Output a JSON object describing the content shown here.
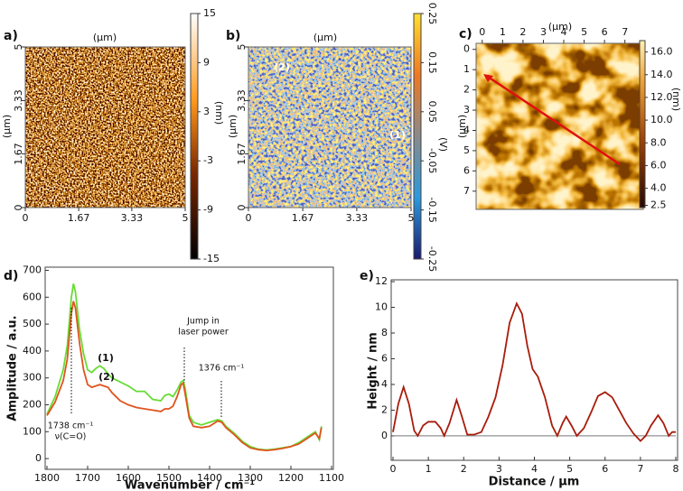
{
  "chart_data": [
    {
      "type": "image",
      "label": "a)",
      "title": "(μm)",
      "ylabel": "(μm)",
      "xlim": [
        0,
        5
      ],
      "xticks": [
        0,
        1.67,
        3.33,
        5
      ],
      "ylim": [
        0,
        5
      ],
      "yticks": [
        0,
        1.67,
        3.33,
        5
      ],
      "colorbar": {
        "lim": [
          -15,
          15
        ],
        "ticks": [
          -15,
          -9,
          -3,
          3,
          9,
          15
        ],
        "label": "(nm)"
      }
    },
    {
      "type": "image",
      "label": "b)",
      "title": "(μm)",
      "ylabel": "(μm)",
      "xlim": [
        0,
        5
      ],
      "xticks": [
        0,
        1.67,
        3.33,
        5
      ],
      "ylim": [
        0,
        5
      ],
      "yticks": [
        0,
        1.67,
        3.33,
        5
      ],
      "annotations": [
        "(2)",
        "(1)"
      ],
      "colorbar": {
        "lim": [
          -0.25,
          0.25
        ],
        "ticks": [
          -0.25,
          -0.15,
          -0.05,
          0.05,
          0.15,
          0.25
        ],
        "label": "(V)"
      }
    },
    {
      "type": "image",
      "label": "c)",
      "title": "(μm)",
      "ylabel": "(μm)",
      "xlim": [
        -0.3,
        7.9
      ],
      "xticks": [
        0,
        1,
        2,
        3,
        4,
        5,
        6,
        7
      ],
      "ylim": [
        7.9,
        -0.3
      ],
      "yticks": [
        0,
        1,
        2,
        3,
        4,
        5,
        6,
        7
      ],
      "colorbar": {
        "lim": [
          2.3,
          17
        ],
        "ticks": [
          2.5,
          {
            "value": 4,
            "label": "4.0"
          },
          {
            "value": 6,
            "label": "6.0"
          },
          {
            "value": 8,
            "label": "8.0"
          },
          {
            "value": 10,
            "label": "10.0"
          },
          {
            "value": 12,
            "label": "12.0"
          },
          {
            "value": 14,
            "label": "14.0"
          },
          {
            "value": 16,
            "label": "16.0"
          }
        ],
        "label": "(nm)"
      }
    },
    {
      "type": "line",
      "label": "d)",
      "xlabel": "Wavenumber / cm⁻¹",
      "ylabel": "Amplitude / a.u.",
      "xlim": [
        1800,
        1100
      ],
      "xticks": [
        1800,
        1700,
        1600,
        1500,
        1400,
        1300,
        1200,
        1100
      ],
      "ylim": [
        -40,
        705
      ],
      "yticks": [
        0,
        100,
        200,
        300,
        400,
        500,
        600,
        700
      ],
      "annotations": [
        "Jump in",
        "laser power",
        "1376 cm⁻¹",
        "1738 cm⁻¹",
        "ν(C=O)"
      ],
      "x": [
        1800,
        1780,
        1760,
        1750,
        1740,
        1735,
        1730,
        1720,
        1710,
        1700,
        1690,
        1680,
        1670,
        1660,
        1650,
        1640,
        1620,
        1600,
        1580,
        1560,
        1540,
        1520,
        1510,
        1500,
        1490,
        1480,
        1470,
        1465,
        1460,
        1450,
        1440,
        1420,
        1400,
        1380,
        1370,
        1360,
        1340,
        1320,
        1300,
        1280,
        1260,
        1240,
        1220,
        1200,
        1180,
        1160,
        1140,
        1130,
        1125
      ],
      "series": [
        {
          "name": "(1)",
          "color": "#66dd33",
          "values": [
            165,
            230,
            330,
            420,
            600,
            650,
            620,
            480,
            390,
            330,
            320,
            335,
            345,
            335,
            315,
            300,
            285,
            270,
            250,
            250,
            220,
            215,
            235,
            240,
            230,
            255,
            285,
            290,
            260,
            160,
            135,
            125,
            135,
            145,
            140,
            120,
            95,
            65,
            45,
            35,
            32,
            35,
            40,
            45,
            60,
            80,
            100,
            70,
            120
          ]
        },
        {
          "name": "(2)",
          "color": "#e0541e",
          "values": [
            160,
            210,
            290,
            370,
            540,
            585,
            560,
            430,
            330,
            275,
            265,
            270,
            275,
            270,
            265,
            245,
            215,
            200,
            190,
            185,
            180,
            175,
            185,
            185,
            195,
            230,
            275,
            280,
            240,
            150,
            120,
            115,
            120,
            140,
            135,
            115,
            90,
            60,
            40,
            33,
            30,
            33,
            38,
            45,
            55,
            75,
            95,
            75,
            115
          ]
        }
      ]
    },
    {
      "type": "line",
      "label": "e)",
      "xlabel": "Distance / μm",
      "ylabel": "Height / nm",
      "xlim": [
        0,
        8
      ],
      "xticks": [
        0,
        1,
        2,
        3,
        4,
        5,
        6,
        7,
        8
      ],
      "ylim": [
        -1.9,
        12
      ],
      "yticks": [
        0,
        2,
        4,
        6,
        8,
        10,
        12
      ],
      "x": [
        0,
        0.15,
        0.3,
        0.45,
        0.6,
        0.7,
        0.85,
        1.0,
        1.2,
        1.35,
        1.45,
        1.6,
        1.8,
        1.95,
        2.1,
        2.3,
        2.5,
        2.7,
        2.9,
        3.1,
        3.3,
        3.5,
        3.65,
        3.8,
        3.95,
        4.1,
        4.3,
        4.5,
        4.65,
        4.8,
        4.9,
        5.05,
        5.2,
        5.4,
        5.6,
        5.8,
        6.0,
        6.2,
        6.4,
        6.6,
        6.8,
        7.0,
        7.15,
        7.3,
        7.5,
        7.65,
        7.8,
        7.9,
        8.0
      ],
      "series": [
        {
          "color": "#a81c0c",
          "values": [
            0.3,
            2.5,
            3.8,
            2.5,
            0.4,
            0,
            0.8,
            1.1,
            1.1,
            0.6,
            0,
            1.0,
            2.8,
            1.5,
            0.1,
            0.1,
            0.3,
            1.5,
            3.0,
            5.5,
            8.8,
            10.3,
            9.5,
            7.0,
            5.2,
            4.6,
            3.0,
            0.8,
            0,
            1.0,
            1.5,
            0.8,
            0,
            0.6,
            1.8,
            3.1,
            3.4,
            3.0,
            2.0,
            1.0,
            0.2,
            -0.4,
            0,
            0.8,
            1.6,
            1.0,
            0,
            0.3,
            0.3
          ]
        }
      ]
    }
  ]
}
